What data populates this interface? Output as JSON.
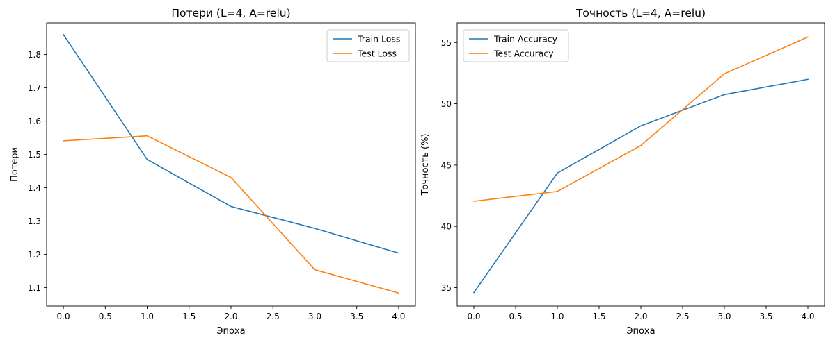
{
  "chart_data": [
    {
      "type": "line",
      "title": "Потери (L=4, A=relu)",
      "xlabel": "Эпоха",
      "ylabel": "Потери",
      "x": [
        0,
        1,
        2,
        3,
        4
      ],
      "xlim": [
        -0.2,
        4.2
      ],
      "ylim": [
        1.045,
        1.895
      ],
      "xticks": [
        0.0,
        0.5,
        1.0,
        1.5,
        2.0,
        2.5,
        3.0,
        3.5,
        4.0
      ],
      "xtick_labels": [
        "0.0",
        "0.5",
        "1.0",
        "1.5",
        "2.0",
        "2.5",
        "3.0",
        "3.5",
        "4.0"
      ],
      "yticks": [
        1.1,
        1.2,
        1.3,
        1.4,
        1.5,
        1.6,
        1.7,
        1.8
      ],
      "ytick_labels": [
        "1.1",
        "1.2",
        "1.3",
        "1.4",
        "1.5",
        "1.6",
        "1.7",
        "1.8"
      ],
      "grid": false,
      "legend_position": "top-right",
      "series": [
        {
          "name": "Train Loss",
          "color": "#1f77b4",
          "values": [
            1.86,
            1.485,
            1.344,
            1.278,
            1.204
          ]
        },
        {
          "name": "Test Loss",
          "color": "#ff7f0e",
          "values": [
            1.541,
            1.556,
            1.431,
            1.154,
            1.084
          ]
        }
      ]
    },
    {
      "type": "line",
      "title": "Точность (L=4, A=relu)",
      "xlabel": "Эпоха",
      "ylabel": "Точность (%)",
      "x": [
        0,
        1,
        2,
        3,
        4
      ],
      "xlim": [
        -0.2,
        4.2
      ],
      "ylim": [
        33.5,
        56.6
      ],
      "xticks": [
        0.0,
        0.5,
        1.0,
        1.5,
        2.0,
        2.5,
        3.0,
        3.5,
        4.0
      ],
      "xtick_labels": [
        "0.0",
        "0.5",
        "1.0",
        "1.5",
        "2.0",
        "2.5",
        "3.0",
        "3.5",
        "4.0"
      ],
      "yticks": [
        35,
        40,
        45,
        50,
        55
      ],
      "ytick_labels": [
        "35",
        "40",
        "45",
        "50",
        "55"
      ],
      "grid": false,
      "legend_position": "top-left",
      "series": [
        {
          "name": "Train Accuracy",
          "color": "#1f77b4",
          "values": [
            34.6,
            44.35,
            48.2,
            50.75,
            52.0
          ]
        },
        {
          "name": "Test Accuracy",
          "color": "#ff7f0e",
          "values": [
            42.05,
            42.85,
            46.6,
            52.45,
            55.45
          ]
        }
      ]
    }
  ]
}
